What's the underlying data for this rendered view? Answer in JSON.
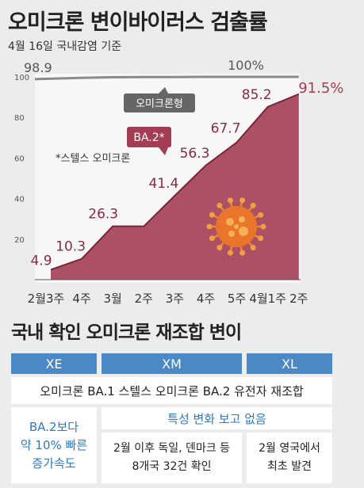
{
  "title": "오미크론 변이바이러스 검출률",
  "subtitle": "4월 16일 국내감염 기준",
  "chart_data": {
    "type": "area",
    "categories": [
      "2월3주",
      "4주",
      "3월",
      "2주",
      "3주",
      "4주",
      "5주",
      "4월1주",
      "2주"
    ],
    "series": [
      {
        "name": "오미크론형",
        "values": [
          98.9,
          99.5,
          99.8,
          99.9,
          99.9,
          100,
          100,
          100,
          100
        ]
      },
      {
        "name": "BA.2*",
        "values": [
          4.9,
          10.3,
          26.3,
          26.3,
          41.4,
          56.3,
          67.7,
          85.2,
          91.5
        ]
      }
    ],
    "data_labels": [
      "4.9",
      "10.3",
      "26.3",
      "41.4",
      "56.3",
      "67.7",
      "85.2",
      "91.5%"
    ],
    "top_labels": [
      "98.9",
      "100%"
    ],
    "yticks": [
      20,
      40,
      60,
      80,
      100
    ],
    "ylim": [
      0,
      100
    ],
    "grid": false,
    "annotation": "*스텔스 오미크론",
    "colors": {
      "ba2": "#a23d54",
      "omicron": "#8a8a8a",
      "label_box": "#666666"
    }
  },
  "section2": {
    "title": "국내 확인 오미크론 재조합 변이",
    "headers": [
      "XE",
      "XM",
      "XL"
    ],
    "common": "오미크론 BA.1 스텔스 오미크론 BA.2 유전자 재조합",
    "xe_note": [
      "BA.2보다",
      "약 10% 빠른",
      "증가속도"
    ],
    "xm_xl_note": "특성 변화 보고 없음",
    "xm_detail": [
      "2월 이후 독일, 덴마크 등",
      "8개국 32건 확인"
    ],
    "xl_detail": [
      "2월 영국에서",
      "최초 발견"
    ],
    "colors": {
      "header": "#4a88c6",
      "note": "#2f78c2"
    }
  }
}
